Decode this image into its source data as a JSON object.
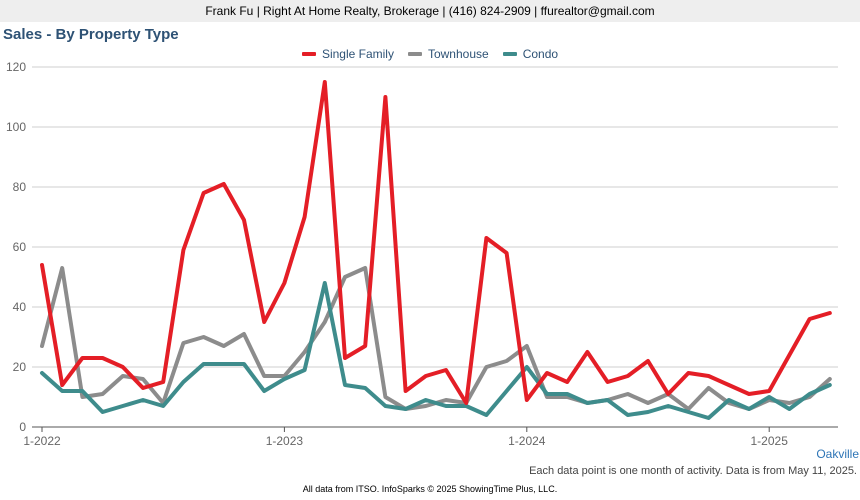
{
  "header": {
    "contact": "Frank Fu | Right At Home Realty, Brokerage | (416) 824-2909 | ffurealtor@gmail.com"
  },
  "region": "Oakville",
  "note": "Each data point is one month of activity. Data is from May 11, 2025.",
  "footer": "All data from ITSO. InfoSparks © 2025 ShowingTime Plus, LLC.",
  "chart_data": {
    "type": "line",
    "title": "Sales - By Property Type",
    "xlabel": "",
    "ylabel": "",
    "ylim": [
      0,
      120
    ],
    "yticks": [
      0,
      20,
      40,
      60,
      80,
      100,
      120
    ],
    "grid": true,
    "legend_position": "top-center",
    "x": [
      "2022-01",
      "2022-02",
      "2022-03",
      "2022-04",
      "2022-05",
      "2022-06",
      "2022-07",
      "2022-08",
      "2022-09",
      "2022-10",
      "2022-11",
      "2022-12",
      "2023-01",
      "2023-02",
      "2023-03",
      "2023-04",
      "2023-05",
      "2023-06",
      "2023-07",
      "2023-08",
      "2023-09",
      "2023-10",
      "2023-11",
      "2023-12",
      "2024-01",
      "2024-02",
      "2024-03",
      "2024-04",
      "2024-05",
      "2024-06",
      "2024-07",
      "2024-08",
      "2024-09",
      "2024-10",
      "2024-11",
      "2024-12",
      "2025-01",
      "2025-02",
      "2025-03",
      "2025-04"
    ],
    "xtick_labels": [
      {
        "label": "1-2022",
        "index": 0
      },
      {
        "label": "1-2023",
        "index": 12
      },
      {
        "label": "1-2024",
        "index": 24
      },
      {
        "label": "1-2025",
        "index": 36
      }
    ],
    "series": [
      {
        "name": "Single Family",
        "color": "#e41e26",
        "values": [
          54,
          14,
          23,
          23,
          20,
          13,
          15,
          59,
          78,
          81,
          69,
          35,
          48,
          70,
          115,
          23,
          27,
          110,
          12,
          17,
          19,
          8,
          63,
          58,
          9,
          18,
          15,
          25,
          15,
          17,
          22,
          11,
          18,
          17,
          14,
          11,
          12,
          24,
          36,
          38
        ]
      },
      {
        "name": "Townhouse",
        "color": "#8c8c8c",
        "values": [
          27,
          53,
          10,
          11,
          17,
          16,
          8,
          28,
          30,
          27,
          31,
          17,
          17,
          25,
          35,
          50,
          53,
          10,
          6,
          7,
          9,
          8,
          20,
          22,
          27,
          10,
          10,
          8,
          9,
          11,
          8,
          11,
          6,
          13,
          8,
          6,
          9,
          8,
          10,
          16
        ]
      },
      {
        "name": "Condo",
        "color": "#3e8c8c",
        "values": [
          18,
          12,
          12,
          5,
          7,
          9,
          7,
          15,
          21,
          21,
          21,
          12,
          16,
          19,
          48,
          14,
          13,
          7,
          6,
          9,
          7,
          7,
          4,
          12,
          20,
          11,
          11,
          8,
          9,
          4,
          5,
          7,
          5,
          3,
          9,
          6,
          10,
          6,
          11,
          14
        ]
      }
    ]
  }
}
